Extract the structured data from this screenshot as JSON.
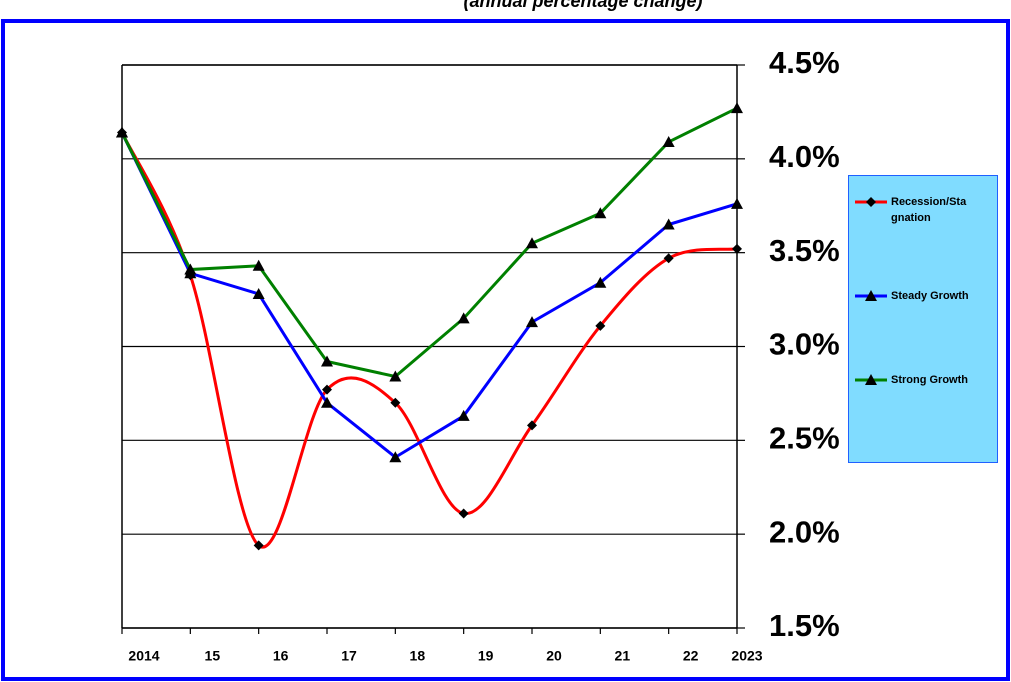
{
  "chart_data": {
    "type": "line",
    "subtitle": "(annual percentage change)",
    "categories": [
      "2014",
      "15",
      "16",
      "17",
      "18",
      "19",
      "20",
      "21",
      "22",
      "2023"
    ],
    "series": [
      {
        "name": "Recession/Stagnation",
        "color": "#ff0000",
        "marker": "diamond",
        "smooth": true,
        "values": [
          4.14,
          3.38,
          1.94,
          2.77,
          2.7,
          2.11,
          2.58,
          3.11,
          3.47,
          3.52
        ]
      },
      {
        "name": "Steady Growth",
        "color": "#0000ff",
        "marker": "triangle",
        "smooth": false,
        "values": [
          4.14,
          3.39,
          3.28,
          2.7,
          2.41,
          2.63,
          3.13,
          3.34,
          3.65,
          3.76
        ]
      },
      {
        "name": "Strong Growth",
        "color": "#008000",
        "marker": "triangle",
        "smooth": false,
        "values": [
          4.14,
          3.41,
          3.43,
          2.92,
          2.84,
          3.15,
          3.55,
          3.71,
          4.09,
          4.27
        ]
      }
    ],
    "ylim": [
      1.5,
      4.5
    ],
    "yticks": [
      {
        "value": 1.5,
        "label": "1.5%"
      },
      {
        "value": 2.0,
        "label": "2.0%"
      },
      {
        "value": 2.5,
        "label": "2.5%"
      },
      {
        "value": 3.0,
        "label": "3.0%"
      },
      {
        "value": 3.5,
        "label": "3.5%"
      },
      {
        "value": 4.0,
        "label": "4.0%"
      },
      {
        "value": 4.5,
        "label": "4.5%"
      }
    ],
    "grid": true,
    "legend": "right"
  }
}
